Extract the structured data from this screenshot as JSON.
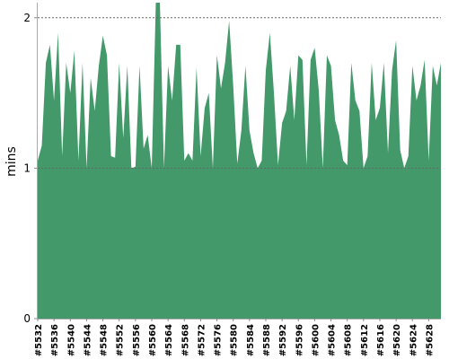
{
  "chart_data": {
    "type": "area",
    "y_label": "mins",
    "color": "#44996b",
    "categories": [
      "#5532",
      null,
      null,
      null,
      "#5536",
      null,
      null,
      null,
      "#5540",
      null,
      null,
      null,
      "#5544",
      null,
      null,
      null,
      "#5548",
      null,
      null,
      null,
      "#5552",
      null,
      null,
      null,
      "#5556",
      null,
      null,
      null,
      "#5560",
      null,
      null,
      null,
      "#5564",
      null,
      null,
      null,
      "#5568",
      null,
      null,
      null,
      "#5572",
      null,
      null,
      null,
      "#5576",
      null,
      null,
      null,
      "#5580",
      null,
      null,
      null,
      "#5584",
      null,
      null,
      null,
      "#5588",
      null,
      null,
      null,
      "#5592",
      null,
      null,
      null,
      "#5596",
      null,
      null,
      null,
      "#5600",
      null,
      null,
      null,
      "#5604",
      null,
      null,
      null,
      "#5608",
      null,
      null,
      null,
      "#5612",
      null,
      null,
      null,
      "#5616",
      null,
      null,
      null,
      "#5620",
      null,
      null,
      null,
      "#5624",
      null,
      null,
      null,
      "#5628",
      null,
      null,
      null
    ],
    "values": [
      1.05,
      1.15,
      1.7,
      1.82,
      1.45,
      1.9,
      1.08,
      1.7,
      1.5,
      1.78,
      1.05,
      1.7,
      1.0,
      1.6,
      1.38,
      1.68,
      1.88,
      1.75,
      1.08,
      1.07,
      1.7,
      1.2,
      1.68,
      1.0,
      1.01,
      1.68,
      1.13,
      1.22,
      1.0,
      2.1,
      2.1,
      1.0,
      1.68,
      1.45,
      1.82,
      1.82,
      1.05,
      1.1,
      1.05,
      1.67,
      1.08,
      1.4,
      1.5,
      1.0,
      1.75,
      1.53,
      1.7,
      1.98,
      1.55,
      1.03,
      1.25,
      1.68,
      1.25,
      1.1,
      1.0,
      1.05,
      1.65,
      1.9,
      1.5,
      1.02,
      1.3,
      1.38,
      1.68,
      1.32,
      1.75,
      1.72,
      1.02,
      1.72,
      1.8,
      1.52,
      1.0,
      1.75,
      1.68,
      1.32,
      1.22,
      1.05,
      1.02,
      1.7,
      1.45,
      1.38,
      1.0,
      1.08,
      1.7,
      1.32,
      1.4,
      1.7,
      1.1,
      1.65,
      1.85,
      1.12,
      1.0,
      1.08,
      1.68,
      1.45,
      1.55,
      1.72,
      1.05,
      1.68,
      1.55,
      1.7
    ],
    "ylim": [
      0,
      2.1
    ],
    "yticks": [
      0,
      1,
      2
    ],
    "grid": true
  }
}
